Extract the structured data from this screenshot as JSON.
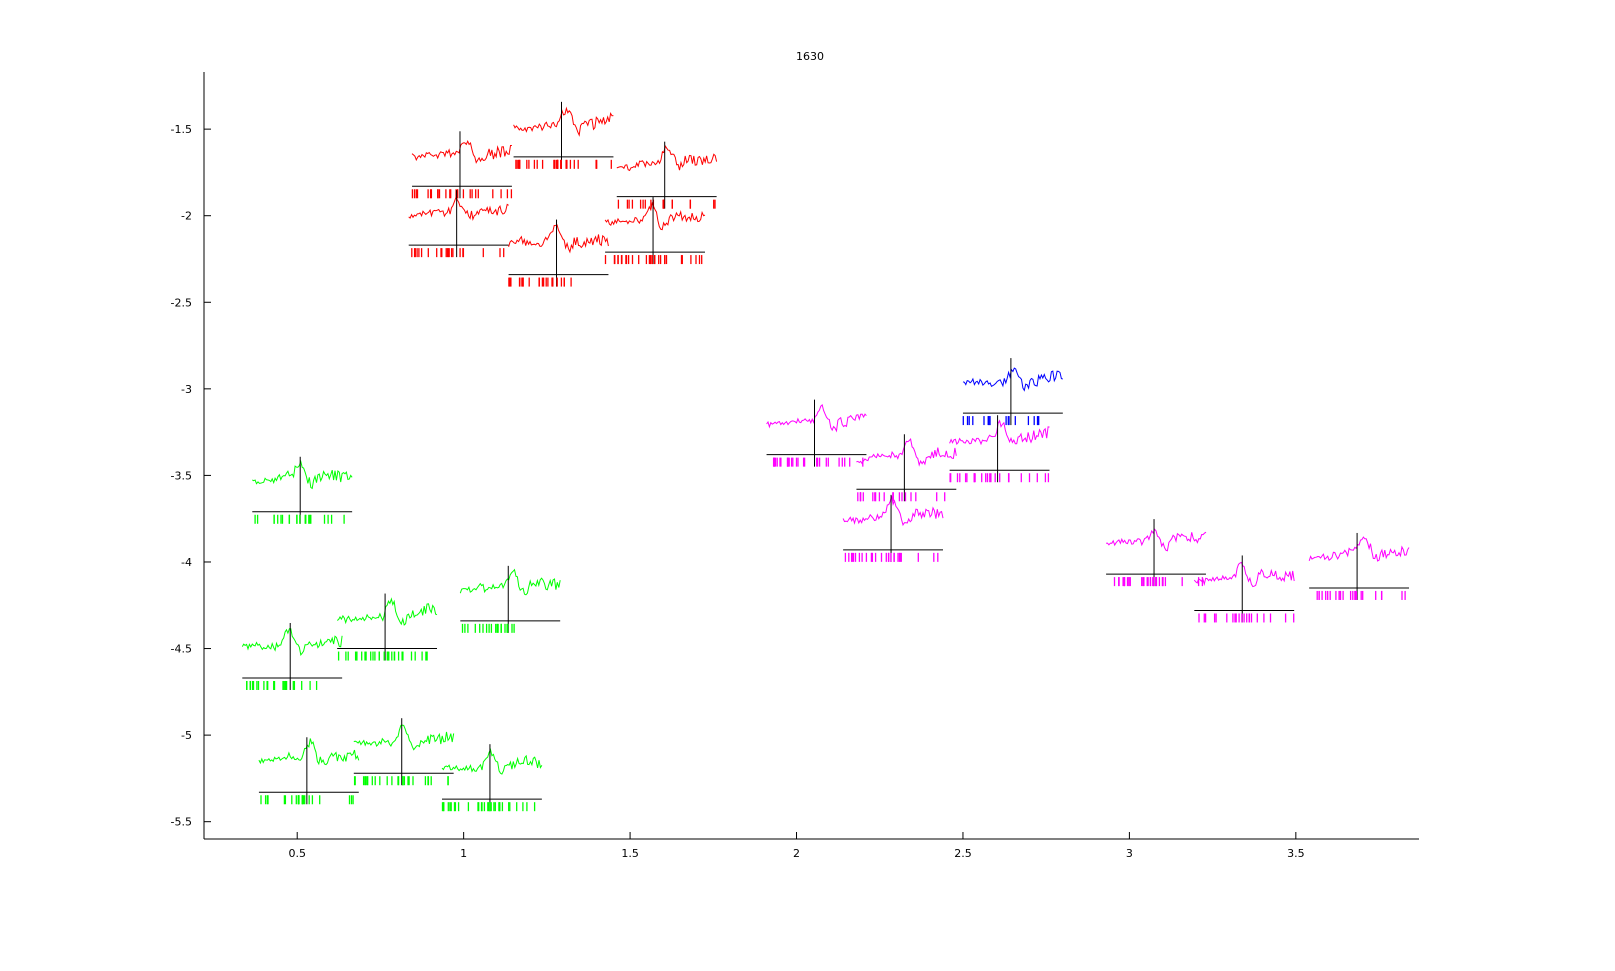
{
  "chart_data": {
    "type": "scatter",
    "title": "1630",
    "xlabel": "",
    "ylabel": "",
    "xlim": [
      0.22,
      3.87
    ],
    "ylim": [
      -5.6,
      -1.17
    ],
    "xticks": [
      0.5,
      1,
      1.5,
      2,
      2.5,
      3,
      3.5
    ],
    "xtick_labels": [
      "0.5",
      "1",
      "1.5",
      "2",
      "2.5",
      "3",
      "3.5"
    ],
    "yticks": [
      -1.5,
      -2,
      -2.5,
      -3,
      -3.5,
      -4,
      -4.5,
      -5,
      -5.5
    ],
    "ytick_labels": [
      "-1.5",
      "-2",
      "-2.5",
      "-3",
      "-3.5",
      "-4",
      "-4.5",
      "-5",
      "-5.5"
    ],
    "grid": false,
    "legend": "none",
    "glyph_width": 0.3,
    "series": [
      {
        "color": "#ff0000",
        "points": [
          {
            "x": 0.995,
            "y": -1.83,
            "seed": 11
          },
          {
            "x": 1.3,
            "y": -1.66,
            "seed": 12
          },
          {
            "x": 1.61,
            "y": -1.89,
            "seed": 13
          },
          {
            "x": 0.985,
            "y": -2.17,
            "seed": 14
          },
          {
            "x": 1.285,
            "y": -2.34,
            "seed": 15
          },
          {
            "x": 1.575,
            "y": -2.21,
            "seed": 16
          }
        ]
      },
      {
        "color": "#00ff00",
        "points": [
          {
            "x": 0.515,
            "y": -3.71,
            "seed": 21
          },
          {
            "x": 0.485,
            "y": -4.67,
            "seed": 22
          },
          {
            "x": 0.77,
            "y": -4.5,
            "seed": 23
          },
          {
            "x": 1.14,
            "y": -4.34,
            "seed": 24
          },
          {
            "x": 0.535,
            "y": -5.33,
            "seed": 25
          },
          {
            "x": 0.82,
            "y": -5.22,
            "seed": 26
          },
          {
            "x": 1.085,
            "y": -5.37,
            "seed": 27
          }
        ]
      },
      {
        "color": "#0000ff",
        "points": [
          {
            "x": 2.65,
            "y": -3.14,
            "seed": 31
          }
        ]
      },
      {
        "color": "#ff00ff",
        "points": [
          {
            "x": 2.06,
            "y": -3.38,
            "seed": 41
          },
          {
            "x": 2.33,
            "y": -3.58,
            "seed": 42
          },
          {
            "x": 2.61,
            "y": -3.47,
            "seed": 43
          },
          {
            "x": 2.29,
            "y": -3.93,
            "seed": 44
          },
          {
            "x": 3.08,
            "y": -4.07,
            "seed": 45
          },
          {
            "x": 3.345,
            "y": -4.28,
            "seed": 46
          },
          {
            "x": 3.69,
            "y": -4.15,
            "seed": 47
          }
        ]
      }
    ]
  }
}
